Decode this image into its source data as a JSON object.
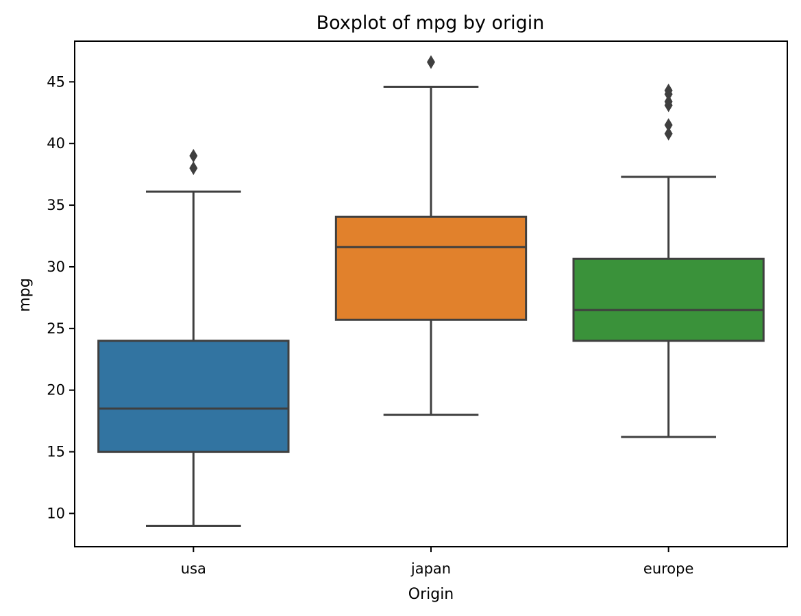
{
  "chart_data": {
    "type": "box",
    "title": "Boxplot of mpg by origin",
    "xlabel": "Origin",
    "ylabel": "mpg",
    "ylim": [
      7.3,
      48.3
    ],
    "yticks": [
      10,
      15,
      20,
      25,
      30,
      35,
      40,
      45
    ],
    "grid": false,
    "categories": [
      "usa",
      "japan",
      "europe"
    ],
    "boxes": [
      {
        "category": "usa",
        "color": "#3274a1",
        "whislo": 9.0,
        "q1": 15.0,
        "median": 18.5,
        "q3": 24.0,
        "whishi": 36.1,
        "fliers": [
          38.0,
          39.0
        ]
      },
      {
        "category": "japan",
        "color": "#e1812c",
        "whislo": 18.0,
        "q1": 25.7,
        "median": 31.6,
        "q3": 34.05,
        "whishi": 44.6,
        "fliers": [
          46.6
        ]
      },
      {
        "category": "europe",
        "color": "#3a923a",
        "whislo": 16.2,
        "q1": 24.0,
        "median": 26.5,
        "q3": 30.65,
        "whishi": 37.3,
        "fliers": [
          40.8,
          41.5,
          43.1,
          43.4,
          44.0,
          44.3
        ]
      }
    ],
    "edge_color": "#3f3f3f"
  }
}
